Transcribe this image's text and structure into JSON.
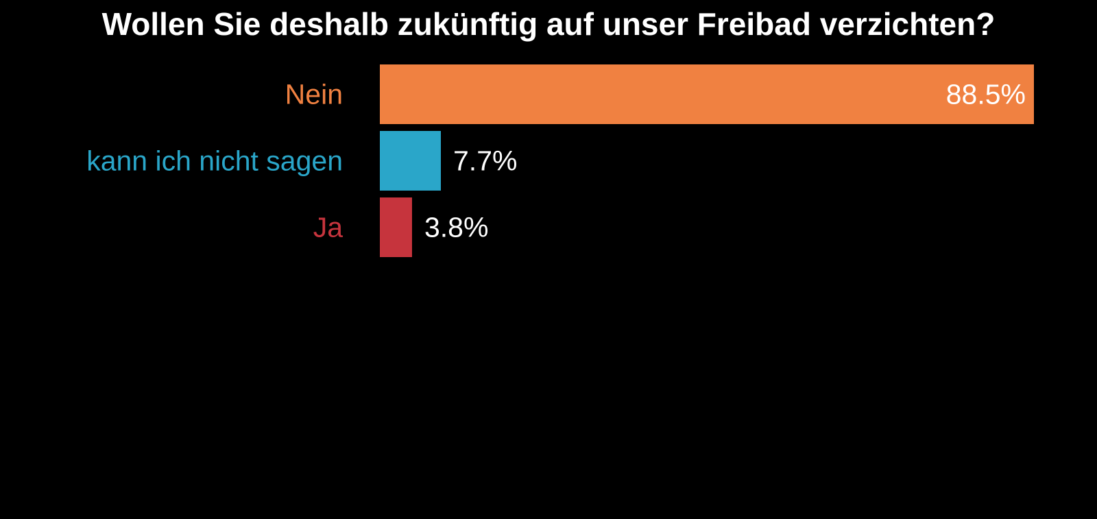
{
  "chart_data": {
    "type": "bar",
    "orientation": "horizontal",
    "title": "Wollen Sie deshalb zukünftig auf unser Freibad verzichten?",
    "categories": [
      "Nein",
      "kann ich nicht sagen",
      "Ja"
    ],
    "values": [
      88.5,
      7.7,
      3.8
    ],
    "value_labels": [
      "88.5%",
      "7.7%",
      "3.8%"
    ],
    "colors": [
      "#F08141",
      "#2AA6C9",
      "#C6343D"
    ],
    "xlabel": "",
    "ylabel": "",
    "xlim": [
      0,
      88.5
    ],
    "grid": false
  }
}
